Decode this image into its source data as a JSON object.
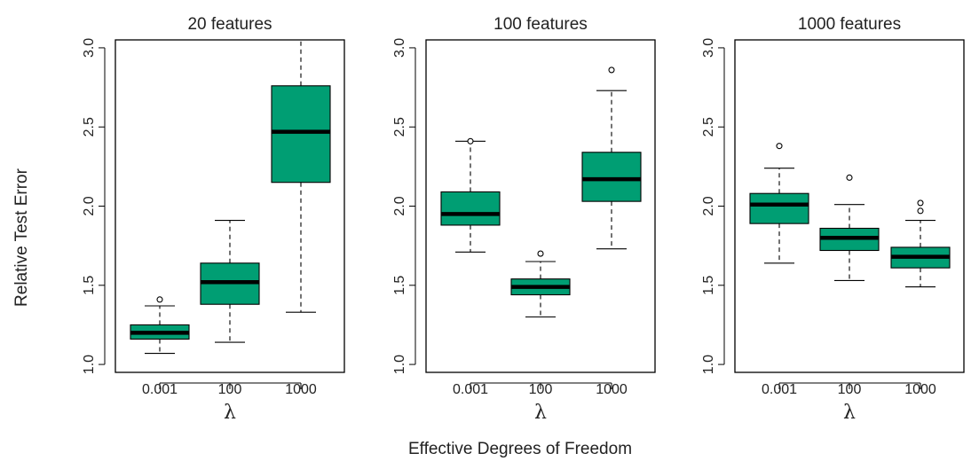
{
  "chart_data": {
    "type": "boxplot",
    "ylabel": "Relative Test Error",
    "xtitle": "Effective Degrees of Freedom",
    "box_color": "#009E73",
    "yticks": [
      "1.0",
      "1.5",
      "2.0",
      "2.5",
      "3.0"
    ],
    "ylim": [
      0.95,
      3.05
    ],
    "panels": [
      {
        "title": "20 features",
        "xlabel": "λ",
        "categories": [
          "0.001",
          "100",
          "1000"
        ],
        "boxes": [
          {
            "whisker_low": 1.07,
            "q1": 1.16,
            "median": 1.2,
            "q3": 1.25,
            "whisker_high": 1.37,
            "outliers": [
              1.41
            ]
          },
          {
            "whisker_low": 1.14,
            "q1": 1.38,
            "median": 1.52,
            "q3": 1.64,
            "whisker_high": 1.91,
            "outliers": []
          },
          {
            "whisker_low": 1.33,
            "q1": 2.15,
            "median": 2.47,
            "q3": 2.76,
            "whisker_high": 3.05,
            "outliers": []
          }
        ]
      },
      {
        "title": "100 features",
        "xlabel": "λ",
        "categories": [
          "0.001",
          "100",
          "1000"
        ],
        "boxes": [
          {
            "whisker_low": 1.71,
            "q1": 1.88,
            "median": 1.95,
            "q3": 2.09,
            "whisker_high": 2.41,
            "outliers": [
              2.41
            ]
          },
          {
            "whisker_low": 1.3,
            "q1": 1.44,
            "median": 1.49,
            "q3": 1.54,
            "whisker_high": 1.65,
            "outliers": [
              1.7
            ]
          },
          {
            "whisker_low": 1.73,
            "q1": 2.03,
            "median": 2.17,
            "q3": 2.34,
            "whisker_high": 2.73,
            "outliers": [
              2.86
            ]
          }
        ]
      },
      {
        "title": "1000 features",
        "xlabel": "λ",
        "categories": [
          "0.001",
          "100",
          "1000"
        ],
        "boxes": [
          {
            "whisker_low": 1.64,
            "q1": 1.89,
            "median": 2.01,
            "q3": 2.08,
            "whisker_high": 2.24,
            "outliers": [
              2.38
            ]
          },
          {
            "whisker_low": 1.53,
            "q1": 1.72,
            "median": 1.8,
            "q3": 1.86,
            "whisker_high": 2.01,
            "outliers": [
              2.18
            ]
          },
          {
            "whisker_low": 1.49,
            "q1": 1.61,
            "median": 1.68,
            "q3": 1.74,
            "whisker_high": 1.91,
            "outliers": [
              1.97,
              2.02
            ]
          }
        ]
      }
    ]
  }
}
